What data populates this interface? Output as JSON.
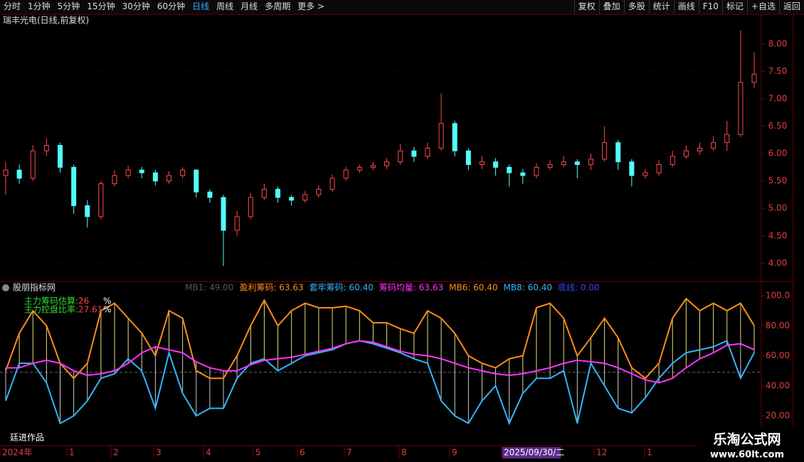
{
  "toolbar": {
    "periods": [
      "分时",
      "1分钟",
      "5分钟",
      "15分钟",
      "30分钟",
      "60分钟",
      "日线",
      "周线",
      "月线",
      "多周期",
      "更多 >"
    ],
    "tools": [
      "复权",
      "叠加",
      "多股",
      "统计",
      "画线",
      "F10",
      "标记",
      "+自选",
      "返回"
    ]
  },
  "price_chart": {
    "type": "candlestick",
    "title": "瑞丰光电(日线,前复权)",
    "ylim": [
      3.68,
      8.31
    ],
    "yticks": [
      {
        "value": 4,
        "label": "4.00"
      },
      {
        "value": 4.5,
        "label": "4.50"
      },
      {
        "value": 5,
        "label": "5.00"
      },
      {
        "value": 5.5,
        "label": "5.50"
      },
      {
        "value": 6,
        "label": "6.00"
      },
      {
        "value": 6.5,
        "label": "6.50"
      },
      {
        "value": 7,
        "label": "7.00"
      },
      {
        "value": 7.5,
        "label": "7.50"
      },
      {
        "value": 8,
        "label": "8.00"
      }
    ],
    "up_color": "#ff4a4a",
    "down_color": "#54fcfc",
    "open": [
      5.6,
      5.7,
      5.55,
      6.05,
      6.15,
      5.75,
      5.05,
      4.85,
      5.45,
      5.6,
      5.7,
      5.65,
      5.5,
      5.6,
      5.7,
      5.3,
      5.2,
      4.6,
      4.85,
      5.2,
      5.35,
      5.2,
      5.15,
      5.25,
      5.35,
      5.55,
      5.7,
      5.75,
      5.78,
      5.85,
      6.05,
      5.95,
      6.1,
      6.55,
      6.05,
      5.8,
      5.85,
      5.75,
      5.65,
      5.6,
      5.75,
      5.8,
      5.85,
      5.8,
      5.9,
      6.2,
      5.85,
      5.6,
      5.65,
      5.8,
      5.95,
      6.05,
      6.1,
      6.2,
      6.35,
      7.3
    ],
    "high": [
      5.85,
      5.8,
      6.15,
      6.28,
      6.2,
      5.8,
      5.15,
      5.5,
      5.7,
      5.78,
      5.76,
      5.7,
      5.68,
      5.75,
      5.72,
      5.35,
      5.25,
      4.95,
      5.28,
      5.45,
      5.4,
      5.25,
      5.32,
      5.42,
      5.62,
      5.76,
      5.8,
      5.85,
      5.92,
      6.18,
      6.12,
      6.2,
      7.1,
      6.6,
      6.1,
      5.95,
      5.92,
      5.8,
      5.72,
      5.82,
      5.88,
      5.95,
      5.9,
      6.0,
      6.5,
      6.25,
      5.9,
      5.72,
      5.88,
      6.05,
      6.15,
      6.2,
      6.32,
      6.6,
      8.25,
      7.85
    ],
    "low": [
      5.25,
      5.45,
      5.5,
      5.95,
      5.65,
      4.9,
      4.65,
      4.8,
      5.4,
      5.55,
      5.55,
      5.42,
      5.45,
      5.55,
      5.2,
      5.1,
      3.95,
      4.5,
      4.8,
      5.15,
      5.1,
      5.05,
      5.1,
      5.2,
      5.3,
      5.5,
      5.65,
      5.7,
      5.72,
      5.8,
      5.85,
      5.9,
      6.05,
      5.95,
      5.7,
      5.72,
      5.6,
      5.4,
      5.45,
      5.55,
      5.7,
      5.75,
      5.55,
      5.7,
      5.85,
      5.7,
      5.4,
      5.55,
      5.6,
      5.75,
      5.9,
      5.98,
      6.05,
      6.05,
      6.3,
      7.2
    ],
    "close": [
      5.7,
      5.55,
      6.05,
      6.15,
      5.75,
      5.05,
      4.85,
      5.45,
      5.6,
      5.7,
      5.65,
      5.5,
      5.6,
      5.7,
      5.3,
      5.2,
      4.6,
      4.85,
      5.2,
      5.35,
      5.2,
      5.15,
      5.25,
      5.35,
      5.55,
      5.7,
      5.75,
      5.78,
      5.85,
      6.05,
      5.95,
      6.1,
      6.55,
      6.05,
      5.8,
      5.85,
      5.75,
      5.65,
      5.6,
      5.75,
      5.8,
      5.85,
      5.8,
      5.9,
      6.2,
      5.85,
      5.6,
      5.65,
      5.8,
      5.95,
      6.05,
      6.1,
      6.2,
      6.35,
      7.3,
      7.45
    ]
  },
  "indicator": {
    "type": "line",
    "title": "股朋指标网",
    "legend": [
      {
        "text": "MB1: 49.00",
        "color": "#555555"
      },
      {
        "text": "盈利筹码: 63.63",
        "color": "#ff8c1a"
      },
      {
        "text": "套牢筹码: 60.40",
        "color": "#33b5ff"
      },
      {
        "text": "筹码均量: 63.63",
        "color": "#ff33ff"
      },
      {
        "text": "MB6: 60.40",
        "color": "#ff8c1a"
      },
      {
        "text": "MB8: 60.40",
        "color": "#33b5ff"
      },
      {
        "text": "底线: 0.00",
        "color": "#3344ff"
      }
    ],
    "notes": [
      {
        "label": "主力筹码估算:",
        "value": "26",
        "unit": "%"
      },
      {
        "label": "主力控盘比率:",
        "value": "27.61",
        "unit": "%"
      }
    ],
    "ylim": [
      2.5,
      107.6
    ],
    "yticks": [
      {
        "value": 20,
        "label": "20.00"
      },
      {
        "value": 40,
        "label": "40.00"
      },
      {
        "value": 60,
        "label": "60.00"
      },
      {
        "value": 80,
        "label": "80.00"
      },
      {
        "value": 100,
        "label": "100.0"
      }
    ],
    "baseline": 49,
    "series": [
      {
        "color": "#ff8c1a",
        "values": [
          50,
          75,
          90,
          80,
          55,
          45,
          55,
          90,
          95,
          85,
          75,
          60,
          90,
          85,
          50,
          45,
          45,
          60,
          80,
          97,
          80,
          90,
          95,
          92,
          92,
          93,
          90,
          82,
          82,
          78,
          75,
          90,
          85,
          75,
          60,
          55,
          52,
          58,
          60,
          92,
          95,
          85,
          60,
          72,
          85,
          72,
          52,
          45,
          55,
          85,
          98,
          90,
          95,
          90,
          95,
          80
        ]
      },
      {
        "color": "#33b5ff",
        "values": [
          30,
          55,
          55,
          42,
          15,
          20,
          30,
          45,
          48,
          58,
          50,
          25,
          62,
          35,
          20,
          25,
          25,
          45,
          55,
          58,
          50,
          55,
          60,
          62,
          64,
          68,
          70,
          68,
          65,
          62,
          58,
          55,
          30,
          20,
          15,
          30,
          40,
          15,
          35,
          45,
          45,
          50,
          15,
          55,
          40,
          25,
          22,
          32,
          45,
          55,
          62,
          64,
          66,
          70,
          45,
          62
        ]
      },
      {
        "color": "#ff33ff",
        "values": [
          52,
          52,
          55,
          57,
          55,
          50,
          47,
          48,
          50,
          55,
          62,
          66,
          64,
          62,
          56,
          52,
          50,
          50,
          54,
          57,
          58,
          59,
          61,
          63,
          65,
          68,
          70,
          69,
          66,
          63,
          61,
          60,
          58,
          55,
          52,
          50,
          48,
          47,
          48,
          50,
          52,
          55,
          57,
          56,
          55,
          52,
          48,
          44,
          42,
          45,
          52,
          58,
          62,
          67,
          68,
          64
        ]
      }
    ]
  },
  "x_labels": [
    "2024年",
    "1",
    "2",
    "3",
    "4",
    "5",
    "6",
    "7",
    "8",
    "9",
    "2025/09/30/二",
    "12",
    "1"
  ],
  "author": "廷进作品",
  "watermark": {
    "name": "乐淘公式网",
    "url": "www.60lt.com"
  }
}
